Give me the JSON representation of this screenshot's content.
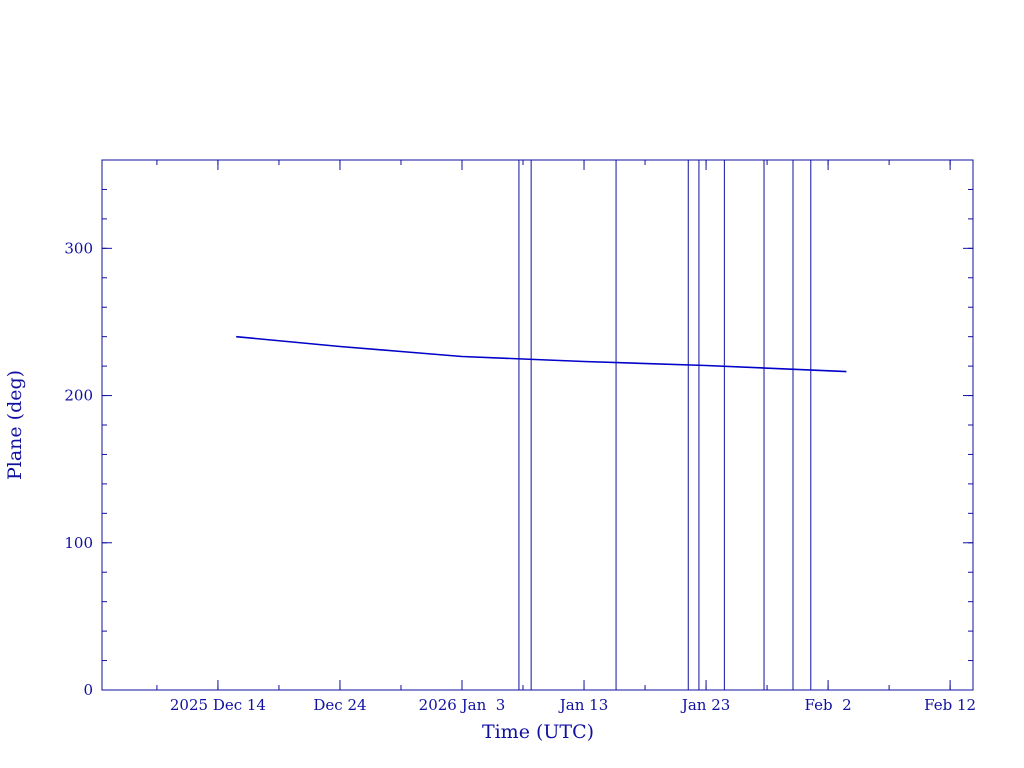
{
  "chart_data": {
    "type": "line",
    "xlabel": "Time (UTC)",
    "ylabel": "Plane (deg)",
    "xlim": [
      "2025-12-04T12:00",
      "2026-02-13T21:00"
    ],
    "xticks": [
      {
        "value": "2025-12-14",
        "label": "2025 Dec 14"
      },
      {
        "value": "2025-12-24",
        "label": "Dec 24"
      },
      {
        "value": "2026-01-03",
        "label": "2026 Jan  3"
      },
      {
        "value": "2026-01-13",
        "label": "Jan 13"
      },
      {
        "value": "2026-01-23",
        "label": "Jan 23"
      },
      {
        "value": "2026-02-02",
        "label": "Feb  2"
      },
      {
        "value": "2026-02-12",
        "label": "Feb 12"
      }
    ],
    "ylim": [
      0,
      360
    ],
    "yticks": [
      0,
      100,
      200,
      300
    ],
    "x": [
      "2025-12-15T12:00",
      "2025-12-24T00:00",
      "2025-12-29T00:00",
      "2026-01-03T00:00",
      "2026-01-13T00:00",
      "2026-01-23T00:00",
      "2026-02-03T12:00"
    ],
    "series": [
      {
        "name": "Plane",
        "color": "#0000c8",
        "values": [
          240,
          233.3,
          229.9,
          226.5,
          223.1,
          220.4,
          216.3
        ]
      }
    ],
    "events": [
      "2026-01-07T16:00",
      "2026-01-08T16:00",
      "2026-01-15T15:00",
      "2026-01-21T13:00",
      "2026-01-22T10:00",
      "2026-01-24T12:00",
      "2026-01-27T18:00",
      "2026-01-30T03:00",
      "2026-01-31T14:00"
    ],
    "event_color": "#1010a0"
  }
}
